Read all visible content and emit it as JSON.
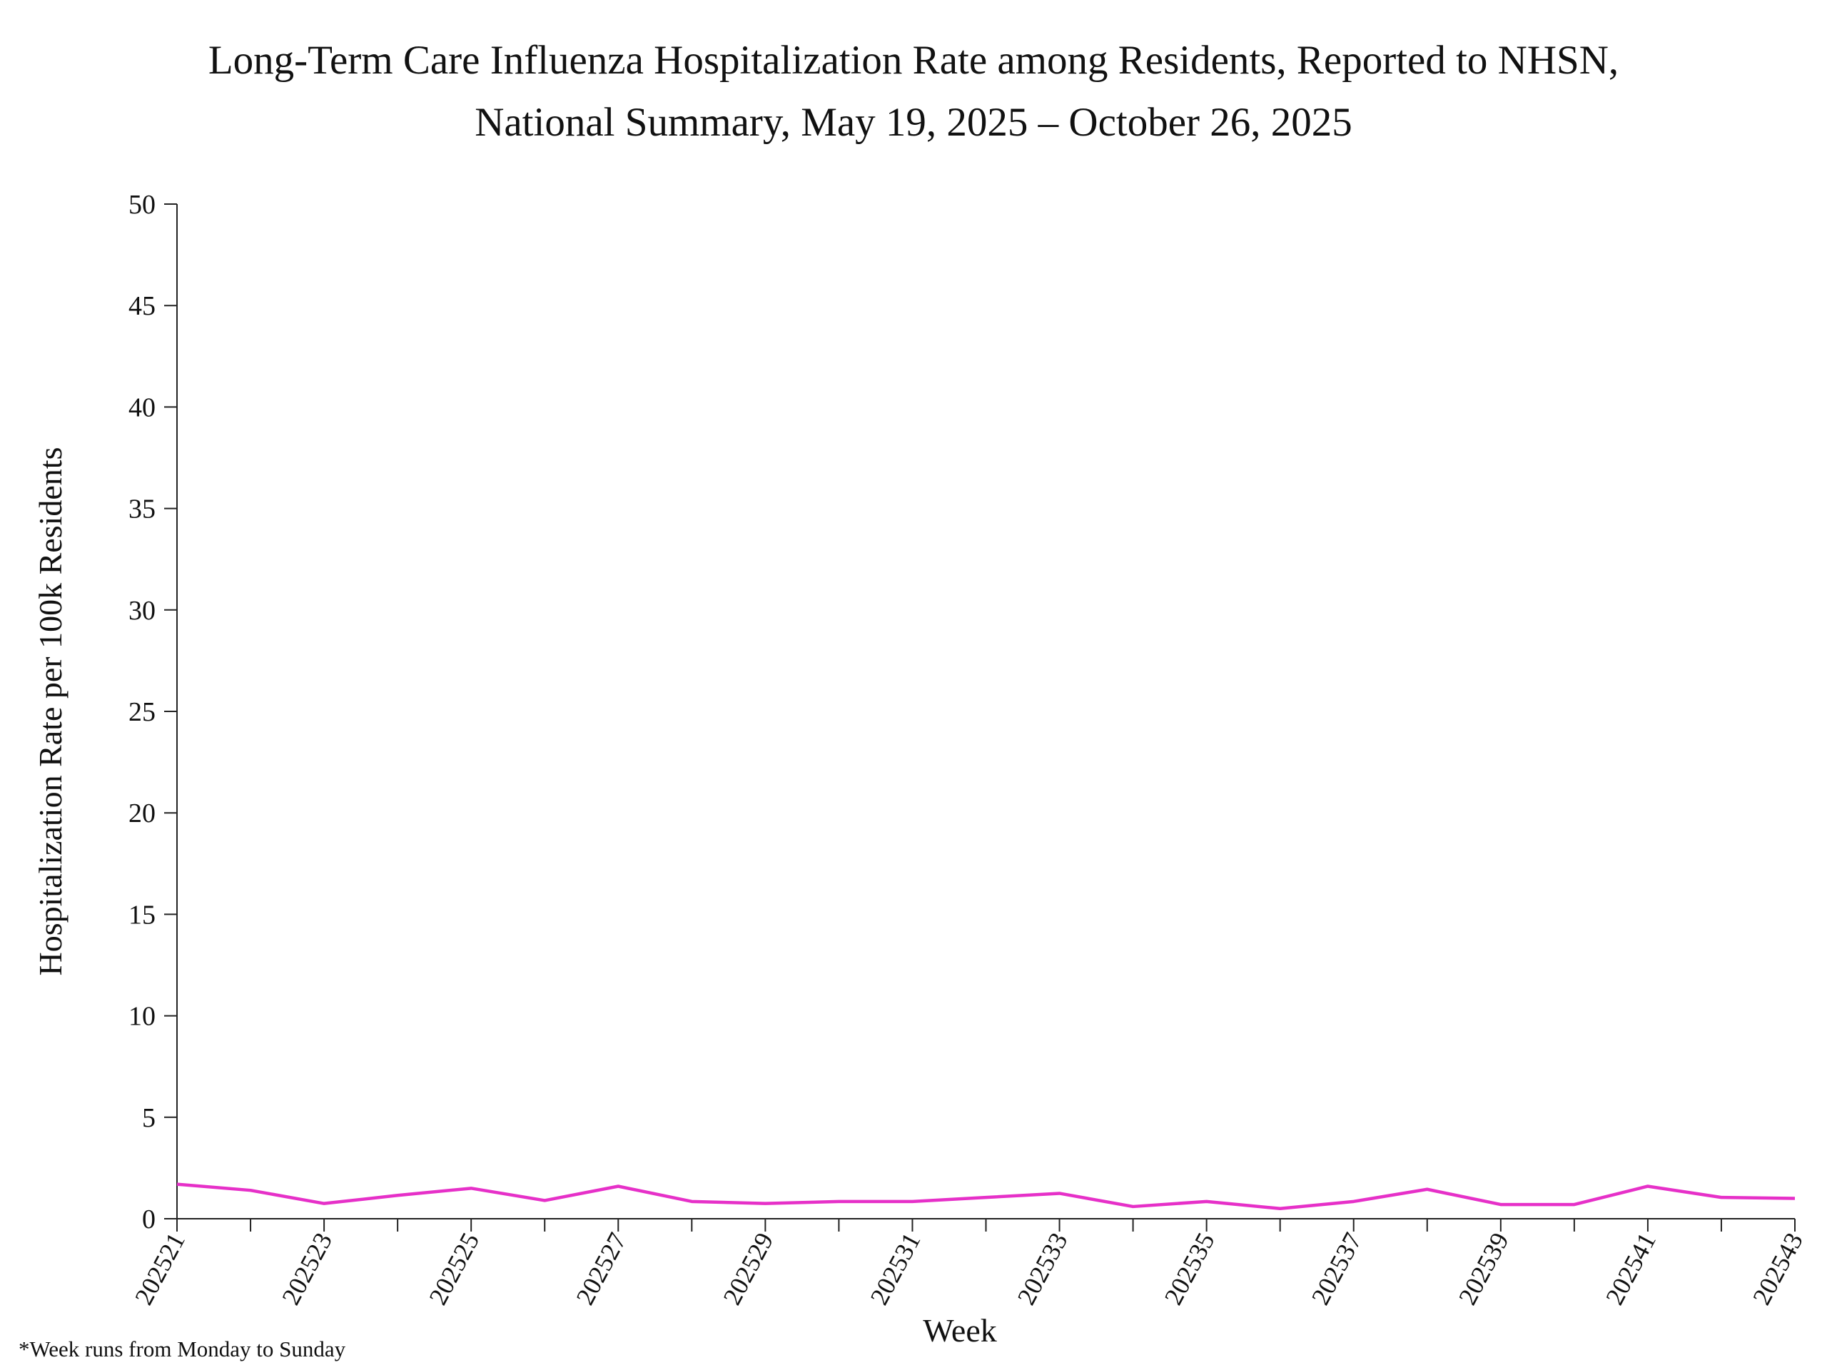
{
  "chart_data": {
    "type": "line",
    "title": [
      "Long-Term Care Influenza Hospitalization Rate among Residents, Reported to NHSN,",
      "National Summary, May 19, 2025 – October 26, 2025"
    ],
    "x_label": "Week",
    "y_label": "Hospitalization Rate per 100k Residents",
    "footnote": "*Week runs from Monday to Sunday",
    "categories": [
      "202521",
      null,
      "202523",
      null,
      "202525",
      null,
      "202527",
      null,
      "202529",
      null,
      "202531",
      null,
      "202533",
      null,
      "202535",
      null,
      "202537",
      null,
      "202539",
      null,
      "202541",
      null,
      "202543"
    ],
    "series": [
      {
        "color": "#e630c8",
        "values": [
          1.7,
          1.4,
          0.75,
          1.15,
          1.5,
          0.9,
          1.6,
          0.85,
          0.75,
          0.85,
          0.85,
          1.05,
          1.25,
          0.6,
          0.85,
          0.5,
          0.85,
          1.45,
          0.7,
          0.7,
          1.6,
          1.05,
          1.0
        ]
      }
    ],
    "ylim": [
      0,
      50
    ],
    "yticks": [
      0,
      5,
      10,
      15,
      20,
      25,
      30,
      35,
      40,
      45,
      50
    ],
    "grid": false
  }
}
